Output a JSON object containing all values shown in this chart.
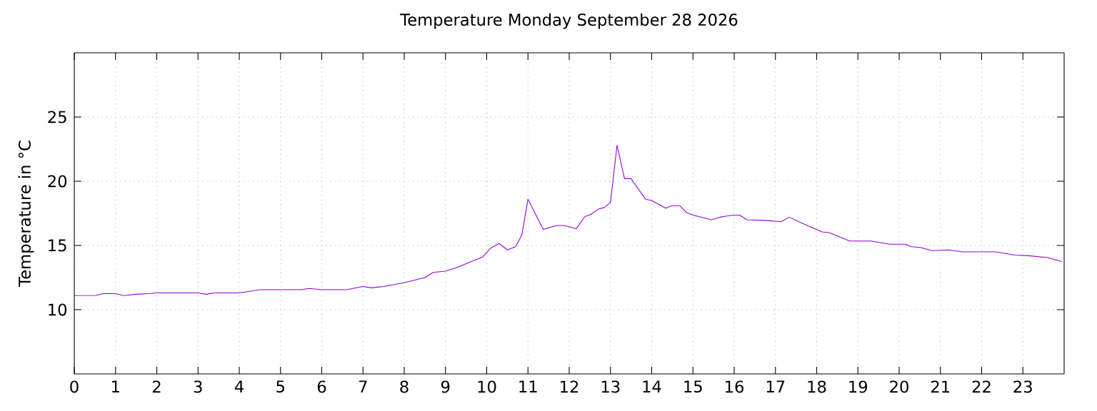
{
  "chart_data": {
    "type": "line",
    "title": "Temperature Monday September 28 2026",
    "ylabel": "Temperature in °C",
    "x": [
      0,
      0.5,
      0.7,
      1.0,
      1.2,
      1.5,
      1.8,
      2,
      3,
      3.2,
      3.4,
      4,
      4.5,
      5,
      5.5,
      5.7,
      6,
      6.6,
      7,
      7.2,
      7.5,
      8,
      8.5,
      8.7,
      9,
      9.3,
      9.7,
      9.9,
      10.1,
      10.3,
      10.5,
      10.7,
      10.85,
      11.0,
      11.37,
      11.7,
      11.88,
      12.17,
      12.38,
      12.52,
      12.72,
      12.85,
      13.0,
      13.16,
      13.34,
      13.5,
      13.85,
      14.0,
      14.34,
      14.5,
      14.68,
      14.85,
      15.02,
      15.45,
      15.65,
      15.94,
      16.14,
      16.31,
      16.74,
      17.14,
      17.33,
      17.74,
      18.13,
      18.3,
      18.8,
      19.31,
      19.77,
      20.15,
      20.29,
      20.51,
      20.8,
      21.2,
      21.54,
      22.34,
      22.8,
      23.14,
      23.6,
      23.94
    ],
    "series": [
      {
        "color": "#9400d3",
        "values": [
          11.1,
          11.1,
          11.25,
          11.25,
          11.1,
          11.2,
          11.25,
          11.3,
          11.3,
          11.2,
          11.3,
          11.3,
          11.55,
          11.55,
          11.55,
          11.65,
          11.55,
          11.55,
          11.8,
          11.7,
          11.8,
          12.1,
          12.5,
          12.9,
          13.0,
          13.3,
          13.85,
          14.1,
          14.8,
          15.15,
          14.65,
          14.9,
          15.8,
          18.6,
          16.25,
          16.55,
          16.55,
          16.3,
          17.25,
          17.4,
          17.85,
          17.95,
          18.35,
          22.8,
          20.2,
          20.2,
          18.6,
          18.5,
          17.9,
          18.1,
          18.1,
          17.55,
          17.35,
          17.0,
          17.2,
          17.35,
          17.35,
          17.0,
          16.95,
          16.85,
          17.2,
          16.6,
          16.05,
          16.0,
          15.35,
          15.35,
          15.1,
          15.1,
          14.9,
          14.85,
          14.6,
          14.65,
          14.5,
          14.5,
          14.25,
          14.2,
          14.05,
          13.75
        ]
      }
    ],
    "xlim": [
      0,
      24
    ],
    "xticks": [
      0,
      1,
      2,
      3,
      4,
      5,
      6,
      7,
      8,
      9,
      10,
      11,
      12,
      13,
      14,
      15,
      16,
      17,
      18,
      19,
      20,
      21,
      22,
      23
    ],
    "ylim": [
      5,
      30
    ],
    "yticks": [
      10,
      15,
      20,
      25
    ],
    "grid": true,
    "line_style": "solid",
    "marker": "none"
  }
}
